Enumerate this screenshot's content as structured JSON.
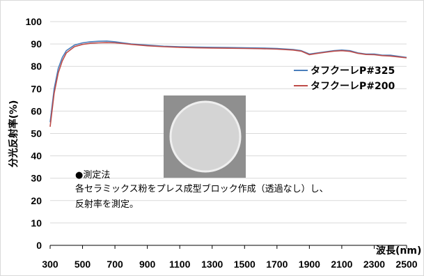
{
  "chart_data": {
    "type": "line",
    "ylabel": "分光反射率(%)",
    "xlabel": "波長(nm)",
    "ylim": [
      0,
      100
    ],
    "xlim": [
      300,
      2500
    ],
    "yticks": [
      0,
      10,
      20,
      30,
      40,
      50,
      60,
      70,
      80,
      90,
      100
    ],
    "xticks": [
      300,
      500,
      700,
      900,
      1100,
      1300,
      1500,
      1700,
      1900,
      2100,
      2300,
      2500
    ],
    "grid": "horizontal",
    "legend_position": "right",
    "series": [
      {
        "name": "タフクーレP#325",
        "color": "#4a7ebb",
        "x": [
          300,
          325,
          350,
          375,
          400,
          450,
          500,
          550,
          600,
          650,
          700,
          750,
          800,
          900,
          1000,
          1100,
          1200,
          1300,
          1400,
          1500,
          1600,
          1700,
          1800,
          1850,
          1900,
          1950,
          2000,
          2050,
          2100,
          2150,
          2200,
          2250,
          2300,
          2350,
          2400,
          2450,
          2500
        ],
        "y": [
          55,
          70,
          79,
          84,
          87,
          89.5,
          90.5,
          91,
          91.2,
          91.3,
          91,
          90.5,
          90,
          89.5,
          89,
          88.8,
          88.6,
          88.5,
          88.4,
          88.3,
          88.2,
          88,
          87.5,
          87,
          85.5,
          86,
          86.5,
          87,
          87.3,
          87,
          86,
          85.5,
          85.5,
          85,
          85,
          84.5,
          84
        ]
      },
      {
        "name": "タフクーレP#200",
        "color": "#be4b48",
        "x": [
          300,
          325,
          350,
          375,
          400,
          450,
          500,
          550,
          600,
          650,
          700,
          750,
          800,
          900,
          1000,
          1100,
          1200,
          1300,
          1400,
          1500,
          1600,
          1700,
          1800,
          1850,
          1900,
          1950,
          2000,
          2050,
          2100,
          2150,
          2200,
          2250,
          2300,
          2350,
          2400,
          2450,
          2500
        ],
        "y": [
          53,
          68,
          77,
          82.5,
          86,
          88.8,
          89.8,
          90.3,
          90.5,
          90.6,
          90.5,
          90.2,
          89.8,
          89.2,
          88.8,
          88.5,
          88.3,
          88.2,
          88.1,
          88,
          87.9,
          87.7,
          87.3,
          86.8,
          85.2,
          85.8,
          86.3,
          86.8,
          87,
          86.7,
          85.8,
          85.3,
          85.2,
          84.8,
          84.6,
          84.2,
          83.8
        ]
      }
    ]
  },
  "annotation": {
    "line1": "●測定法",
    "line2": "各セラミックス粉をプレス成型ブロック作成（透過なし）し、",
    "line3": "反射率を測定。"
  },
  "sample_photo": {
    "description_icon": "ceramic-disc-sample",
    "bg_color": "#8f8f8f",
    "disc_color": "#d4d4d4"
  }
}
